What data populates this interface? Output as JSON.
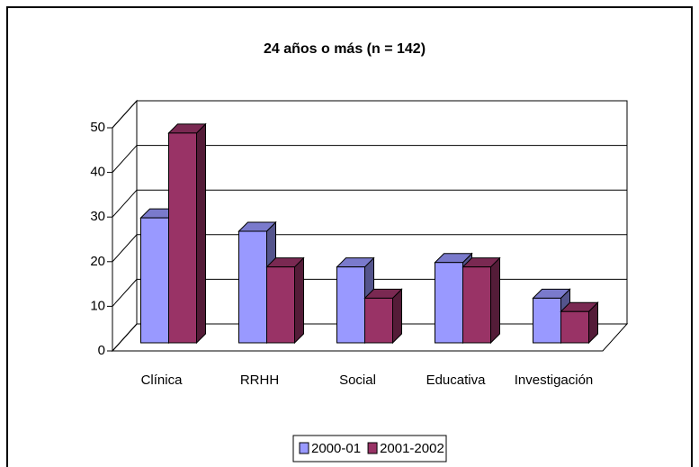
{
  "chart_data": {
    "type": "bar",
    "title": "24 años o más (n = 142)",
    "categories": [
      "Clínica",
      "RRHH",
      "Social",
      "Educativa",
      "Investigación"
    ],
    "series": [
      {
        "name": "2000-01",
        "color": "#9999ff",
        "values": [
          28,
          25,
          17,
          18,
          10
        ]
      },
      {
        "name": "2001-2002",
        "color": "#993366",
        "values": [
          47,
          17,
          10,
          17,
          7
        ]
      }
    ],
    "ylim": [
      0,
      50
    ],
    "yticks": [
      0,
      10,
      20,
      30,
      40,
      50
    ],
    "grid": true,
    "legend": "bottom"
  }
}
